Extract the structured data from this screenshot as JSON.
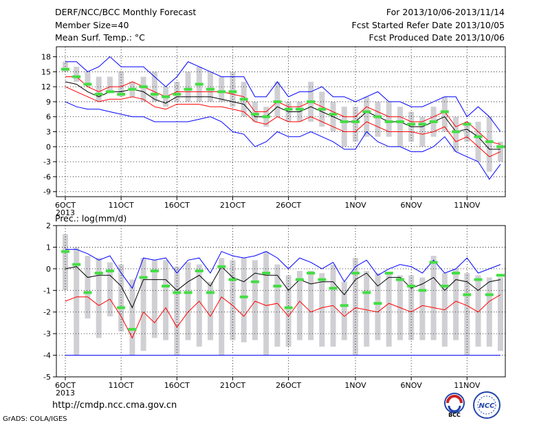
{
  "header": {
    "title": "DERF/NCC/BCC Monthly Forecast",
    "member_size": "Member Size=40",
    "variable": "Mean Surf. Temp.: °C",
    "forecast_period": "For 2013/10/06-2013/11/14",
    "start_date": "Fcst Started Refer Date 2013/10/05",
    "produced_date": "Fcst Produced Date 2013/10/06"
  },
  "panel2_label": "Prec.: log(mm/d)",
  "footer": {
    "url": "http://cmdp.ncc.cma.gov.cn",
    "grads": "GrADS: COLA/IGES",
    "logo1_text": "BCC",
    "logo2_text": "NCC"
  },
  "colors": {
    "max_line": "#0000ff",
    "min_line": "#0000ff",
    "upper_line": "#ff0000",
    "lower_line": "#ff0000",
    "mean_line": "#000000",
    "bar": "#d0d0d4",
    "marker": "#44dd44"
  },
  "chart_data": [
    {
      "type": "line",
      "ylabel": "Mean Surf. Temp.: °C",
      "ylim": [
        -10,
        20
      ],
      "yticks": [
        18,
        15,
        12,
        9,
        6,
        3,
        0,
        -3,
        -6,
        -9
      ],
      "x_tick_labels": [
        {
          "day": 0,
          "label": "6OCT",
          "sub": "2013"
        },
        {
          "day": 5,
          "label": "11OCT"
        },
        {
          "day": 10,
          "label": "16OCT"
        },
        {
          "day": 15,
          "label": "21OCT"
        },
        {
          "day": 20,
          "label": "26OCT"
        },
        {
          "day": 26,
          "label": "1NOV"
        },
        {
          "day": 31,
          "label": "6NOV"
        },
        {
          "day": 36,
          "label": "11NOV"
        }
      ],
      "days": 40,
      "grid": true,
      "series": [
        {
          "key": "max",
          "values": [
            17,
            17,
            15,
            16,
            18,
            16,
            16,
            16,
            14,
            12,
            14,
            17,
            16,
            15,
            14,
            14,
            14,
            10,
            10,
            13,
            10,
            11,
            11,
            12,
            10,
            10,
            9,
            10,
            11,
            9,
            9,
            8,
            8,
            9,
            10,
            10,
            6,
            8,
            6,
            3
          ]
        },
        {
          "key": "upper",
          "values": [
            14,
            14,
            12,
            11,
            12,
            12,
            13,
            12,
            11,
            10,
            11,
            11,
            11,
            11,
            11,
            10.5,
            10,
            7,
            7,
            9,
            8,
            8,
            9,
            8,
            7,
            6,
            6,
            8,
            7,
            6,
            6,
            5,
            5,
            6,
            7,
            4,
            5,
            3,
            1,
            0.5
          ]
        },
        {
          "key": "mean",
          "values": [
            13,
            12.5,
            11,
            10,
            11,
            11,
            11.5,
            11,
            9.5,
            8.7,
            10,
            10,
            10,
            10,
            9.5,
            9,
            8.5,
            6,
            6,
            8,
            7,
            7,
            8,
            7,
            6,
            5,
            5,
            7,
            6,
            5,
            5,
            4,
            4,
            5,
            6,
            3,
            3.5,
            2,
            -0.5,
            -0.5
          ]
        },
        {
          "key": "lower",
          "values": [
            12,
            11,
            10,
            9,
            9.5,
            9.5,
            10,
            9.5,
            8,
            7.5,
            8.5,
            8.5,
            8.5,
            8,
            8,
            7.5,
            7,
            5,
            4.5,
            6,
            5,
            5,
            6,
            5,
            4,
            3,
            3,
            5,
            4,
            3,
            3,
            3,
            2.5,
            3,
            4,
            1,
            2,
            0,
            -2,
            -1
          ]
        },
        {
          "key": "min",
          "values": [
            9,
            8,
            7.5,
            7.5,
            7,
            6.5,
            6,
            6,
            5,
            5,
            5,
            5,
            5.5,
            6,
            5,
            3,
            2.5,
            0,
            1,
            3,
            2,
            2,
            3,
            2,
            1,
            -0.5,
            -0.5,
            3,
            1,
            0,
            0,
            -1,
            -1,
            0,
            2,
            -1,
            -2,
            -3,
            -6.5,
            -3.5
          ]
        }
      ],
      "bars": [
        [
          15,
          17
        ],
        [
          13,
          16
        ],
        [
          12,
          15
        ],
        [
          9,
          14
        ],
        [
          11,
          14
        ],
        [
          10,
          15
        ],
        [
          10,
          13
        ],
        [
          9,
          14
        ],
        [
          9,
          15
        ],
        [
          8,
          12
        ],
        [
          9,
          13
        ],
        [
          9,
          15
        ],
        [
          9,
          16
        ],
        [
          9,
          15
        ],
        [
          9,
          14
        ],
        [
          8,
          15
        ],
        [
          6,
          13
        ],
        [
          5,
          9
        ],
        [
          4,
          8
        ],
        [
          6,
          13
        ],
        [
          5,
          9
        ],
        [
          5,
          9
        ],
        [
          5,
          13
        ],
        [
          4,
          11
        ],
        [
          3,
          9
        ],
        [
          0,
          8
        ],
        [
          1,
          8
        ],
        [
          2,
          10
        ],
        [
          2,
          9
        ],
        [
          2,
          9
        ],
        [
          0,
          8
        ],
        [
          1,
          7
        ],
        [
          0,
          6
        ],
        [
          2,
          8
        ],
        [
          3,
          10
        ],
        [
          -1,
          6
        ],
        [
          1,
          5
        ],
        [
          -3,
          5
        ],
        [
          -5,
          6
        ],
        [
          -3,
          1
        ]
      ],
      "markers": [
        15.5,
        14,
        12.5,
        10.5,
        11,
        10.5,
        11.5,
        12,
        10.5,
        10,
        10.5,
        11.5,
        12.5,
        11.5,
        11,
        11,
        9.5,
        6.5,
        6,
        9,
        7.5,
        7.5,
        9,
        7.5,
        6.5,
        5,
        5,
        7,
        6,
        5,
        5,
        4.5,
        4.5,
        5,
        7,
        3,
        4.5,
        2,
        1,
        0
      ]
    },
    {
      "type": "line",
      "ylabel": "Prec.: log(mm/d)",
      "ylim": [
        -5,
        2
      ],
      "yticks": [
        2,
        1,
        0,
        -1,
        -2,
        -3,
        -4,
        -5
      ],
      "x_tick_labels": [
        {
          "day": 0,
          "label": "6OCT",
          "sub": "2013"
        },
        {
          "day": 5,
          "label": "11OCT"
        },
        {
          "day": 10,
          "label": "16OCT"
        },
        {
          "day": 15,
          "label": "21OCT"
        },
        {
          "day": 20,
          "label": "26OCT"
        },
        {
          "day": 26,
          "label": "1NOV"
        },
        {
          "day": 31,
          "label": "6NOV"
        },
        {
          "day": 36,
          "label": "11NOV"
        }
      ],
      "days": 40,
      "grid": true,
      "series": [
        {
          "key": "max",
          "values": [
            0.9,
            0.9,
            0.7,
            0.4,
            0.6,
            -0.2,
            -0.9,
            0.5,
            0.4,
            0.5,
            -0.2,
            0.4,
            0.5,
            -0.2,
            0.8,
            0.6,
            0.5,
            0.6,
            0.8,
            0.5,
            0,
            0.5,
            0.3,
            0,
            0.3,
            -0.6,
            0.1,
            0.4,
            -0.3,
            0,
            0.2,
            0.1,
            -0.2,
            0.4,
            -0.2,
            0,
            0.5,
            -0.2,
            0,
            0.2
          ]
        },
        {
          "key": "mean",
          "values": [
            0,
            0.1,
            -0.4,
            -0.3,
            -0.3,
            -0.8,
            -1.8,
            -0.5,
            -0.5,
            -0.5,
            -1,
            -0.6,
            -0.3,
            -0.8,
            0.1,
            -0.4,
            -0.6,
            -0.2,
            -0.3,
            -0.3,
            -1,
            -0.5,
            -0.7,
            -0.6,
            -0.6,
            -1.2,
            -0.5,
            -0.2,
            -0.8,
            -0.4,
            -0.4,
            -0.9,
            -0.7,
            -0.4,
            -1,
            -0.5,
            -0.6,
            -1,
            -0.6,
            -0.5
          ]
        },
        {
          "key": "lower",
          "values": [
            -1.5,
            -1.3,
            -1.3,
            -1.7,
            -1.4,
            -2.2,
            -3.2,
            -2,
            -2.5,
            -1.8,
            -2.7,
            -2,
            -1.5,
            -2.2,
            -1.3,
            -1.7,
            -2.2,
            -1.5,
            -1.7,
            -1.6,
            -2.2,
            -1.5,
            -2,
            -1.8,
            -1.7,
            -2.2,
            -1.8,
            -1.9,
            -2,
            -1.6,
            -1.8,
            -2,
            -1.7,
            -1.8,
            -1.9,
            -1.5,
            -1.7,
            -2,
            -1.5,
            -1.2
          ]
        },
        {
          "key": "min",
          "values": [
            -4,
            -4,
            -4,
            -4,
            -4,
            -4,
            -4,
            -4,
            -4,
            -4,
            -4,
            -4,
            -4,
            -4,
            -4,
            -4,
            -4,
            -4,
            -4,
            -4,
            -4,
            -4,
            -4,
            -4,
            -4,
            -4,
            -4,
            -4,
            -4,
            -4,
            -4,
            -4,
            -4,
            -4,
            -4,
            -4,
            -4,
            -4,
            -4,
            -4
          ]
        }
      ],
      "bars": [
        [
          -1,
          1.6
        ],
        [
          -4,
          1
        ],
        [
          -2.3,
          0.6
        ],
        [
          -3.2,
          0.5
        ],
        [
          -2.2,
          0.3
        ],
        [
          -2.9,
          0.2
        ],
        [
          -4,
          -0.5
        ],
        [
          -3.8,
          0.5
        ],
        [
          -3.2,
          0.4
        ],
        [
          -3.3,
          0.4
        ],
        [
          -4,
          0.1
        ],
        [
          -3.3,
          0.3
        ],
        [
          -3.6,
          0.2
        ],
        [
          -3.3,
          -0.6
        ],
        [
          -4,
          0.5
        ],
        [
          -3.3,
          0.4
        ],
        [
          -3.4,
          0.5
        ],
        [
          -3.3,
          0.4
        ],
        [
          -4,
          0.8
        ],
        [
          -3.6,
          0.2
        ],
        [
          -3.6,
          -0.3
        ],
        [
          -3.3,
          -0.1
        ],
        [
          -3.3,
          -0.1
        ],
        [
          -3.6,
          -0.2
        ],
        [
          -3.6,
          0.2
        ],
        [
          -3.3,
          -0.6
        ],
        [
          -4,
          0.5
        ],
        [
          -3.6,
          -0.1
        ],
        [
          -3.3,
          -0.2
        ],
        [
          -3.6,
          -0.2
        ],
        [
          -3.3,
          -0.3
        ],
        [
          -3.3,
          -0.3
        ],
        [
          -3.3,
          -0.4
        ],
        [
          -3.3,
          0.6
        ],
        [
          -3.6,
          -0.2
        ],
        [
          -3.3,
          0
        ],
        [
          -4,
          -0.2
        ],
        [
          -3.6,
          -0.3
        ],
        [
          -3.6,
          -0.4
        ],
        [
          -3.8,
          -0.4
        ]
      ],
      "markers": [
        0.8,
        0.2,
        -1.1,
        -0.2,
        -0.1,
        -1.8,
        -2.8,
        -0.4,
        -0.1,
        -0.8,
        -1.1,
        -1.1,
        -0.1,
        -1.1,
        0.1,
        -0.5,
        -1.3,
        -0.6,
        -0.2,
        -0.8,
        -1.8,
        -0.5,
        -0.2,
        -0.5,
        -0.9,
        -1.7,
        -0.2,
        -1.1,
        -1.6,
        -0.2,
        -0.5,
        -0.8,
        -1,
        0.3,
        -0.8,
        -0.2,
        -1.2,
        -0.5,
        -1.2,
        -0.3
      ]
    }
  ]
}
